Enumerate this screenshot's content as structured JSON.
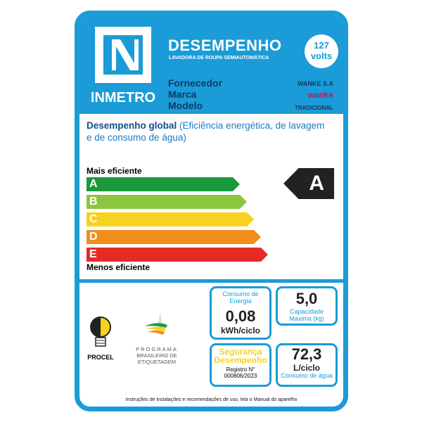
{
  "header": {
    "brand": "INMETRO",
    "title": "DESEMPENHO",
    "subtitle": "LAVADORA DE ROUPA SEMIAUTOMÁTICA",
    "voltage_value": "127",
    "voltage_unit": "volts"
  },
  "product": {
    "fornecedor_label": "Fornecedor",
    "fornecedor": "WANKE S.A",
    "marca_label": "Marca",
    "marca": "wanke",
    "modelo_label": "Modelo",
    "modelo": "TRADICIONAL"
  },
  "performance": {
    "title": "Desempenho global",
    "title_detail": "(Eficiência energética, de lavagem e de consumo de água)",
    "more_efficient": "Mais eficiente",
    "less_efficient": "Menos eficiente",
    "classes": [
      "A",
      "B",
      "C",
      "D",
      "E"
    ],
    "class_colors": [
      "#1a9a3a",
      "#8cc63f",
      "#f7d21e",
      "#f18e1c",
      "#e52b25"
    ],
    "rating": "A"
  },
  "specs": {
    "energy_label": "Consumo de Energia",
    "energy_value": "0,08",
    "energy_unit": "kWh/ciclo",
    "capacity_value": "5,0",
    "capacity_label": "Capacidade Máxima (kg)",
    "safety_line1": "Segurança",
    "safety_line2": "Desempenho",
    "registro_label": "Registro N°",
    "registro_value": "000806/2023",
    "water_value": "72,3",
    "water_unit": "L/ciclo",
    "water_label": "Consumo de água"
  },
  "logos": {
    "procel": "PROCEL",
    "pbe_line1": "PROGRAMA",
    "pbe_line2": "BRASILEIRO DE",
    "pbe_line3": "ETIQUETAGEM"
  },
  "footer": "Instruções de instalações e recomendações de uso, leia o Manual do aparelho"
}
